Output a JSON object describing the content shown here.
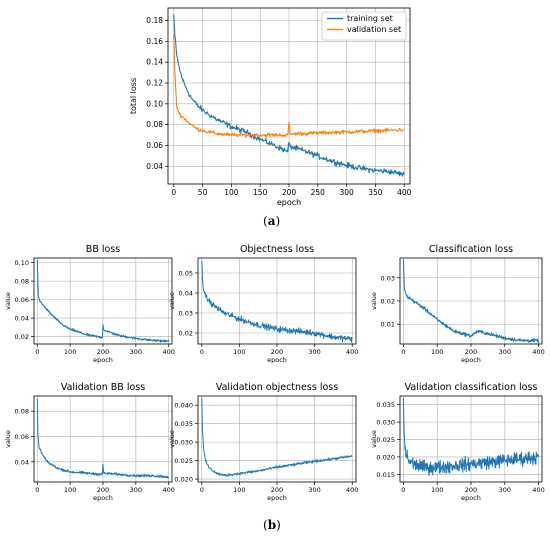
{
  "captions": {
    "a": "(a)",
    "b": "(b)"
  },
  "chart_data": [
    {
      "id": "total",
      "type": "line",
      "title": "",
      "xlabel": "epoch",
      "ylabel": "total loss",
      "xlim": [
        -10,
        410
      ],
      "ylim": [
        0.023,
        0.192
      ],
      "xticks": [
        0,
        50,
        100,
        150,
        200,
        250,
        300,
        350,
        400
      ],
      "yticks": [
        0.04,
        0.06,
        0.08,
        0.1,
        0.12,
        0.14,
        0.16,
        0.18
      ],
      "ytick_labels": [
        "0.04",
        "0.06",
        "0.08",
        "0.10",
        "0.12",
        "0.14",
        "0.16",
        "0.18"
      ],
      "grid": true,
      "legend_position": "top-right",
      "series": [
        {
          "name": "training set",
          "color": "#1f77b4",
          "points": [
            [
              0,
              0.186
            ],
            [
              2,
              0.165
            ],
            [
              5,
              0.147
            ],
            [
              10,
              0.133
            ],
            [
              15,
              0.124
            ],
            [
              20,
              0.117
            ],
            [
              30,
              0.106
            ],
            [
              40,
              0.099
            ],
            [
              50,
              0.094
            ],
            [
              60,
              0.09
            ],
            [
              75,
              0.085
            ],
            [
              100,
              0.078
            ],
            [
              125,
              0.073
            ],
            [
              150,
              0.066
            ],
            [
              175,
              0.06
            ],
            [
              198,
              0.054
            ],
            [
              200,
              0.063
            ],
            [
              202,
              0.059
            ],
            [
              225,
              0.055
            ],
            [
              250,
              0.05
            ],
            [
              275,
              0.045
            ],
            [
              300,
              0.041
            ],
            [
              325,
              0.038
            ],
            [
              350,
              0.036
            ],
            [
              375,
              0.035
            ],
            [
              400,
              0.032
            ]
          ],
          "noise": 0.0022,
          "start_x": 0,
          "end_x": 400
        },
        {
          "name": "validation set",
          "color": "#ff7f0e",
          "points": [
            [
              0,
              0.167
            ],
            [
              2,
              0.13
            ],
            [
              5,
              0.098
            ],
            [
              10,
              0.09
            ],
            [
              20,
              0.085
            ],
            [
              30,
              0.08
            ],
            [
              40,
              0.076
            ],
            [
              60,
              0.073
            ],
            [
              80,
              0.071
            ],
            [
              100,
              0.07
            ],
            [
              150,
              0.07
            ],
            [
              198,
              0.07
            ],
            [
              200,
              0.082
            ],
            [
              202,
              0.071
            ],
            [
              250,
              0.072
            ],
            [
              300,
              0.073
            ],
            [
              350,
              0.074
            ],
            [
              400,
              0.075
            ]
          ],
          "noise": 0.0015,
          "start_x": 0,
          "end_x": 400
        }
      ]
    },
    {
      "id": "bb",
      "type": "line",
      "title": "BB loss",
      "xlabel": "epoch",
      "ylabel": "value",
      "xlim": [
        -10,
        410
      ],
      "ylim": [
        0.012,
        0.105
      ],
      "xticks": [
        0,
        100,
        200,
        300,
        400
      ],
      "yticks": [
        0.02,
        0.04,
        0.06,
        0.08,
        0.1
      ],
      "ytick_labels": [
        "0.02",
        "0.04",
        "0.06",
        "0.08",
        "0.10"
      ],
      "grid": true,
      "series": [
        {
          "name": "",
          "color": "#1f77b4",
          "points": [
            [
              0,
              0.103
            ],
            [
              3,
              0.065
            ],
            [
              8,
              0.058
            ],
            [
              20,
              0.053
            ],
            [
              40,
              0.045
            ],
            [
              60,
              0.038
            ],
            [
              80,
              0.032
            ],
            [
              100,
              0.028
            ],
            [
              150,
              0.022
            ],
            [
              198,
              0.019
            ],
            [
              200,
              0.033
            ],
            [
              203,
              0.027
            ],
            [
              250,
              0.021
            ],
            [
              300,
              0.018
            ],
            [
              350,
              0.016
            ],
            [
              400,
              0.015
            ]
          ],
          "noise": 0.001,
          "start_x": 0,
          "end_x": 400
        }
      ]
    },
    {
      "id": "obj",
      "type": "line",
      "title": "Objectness loss",
      "xlabel": "epoch",
      "ylabel": "value",
      "xlim": [
        -10,
        410
      ],
      "ylim": [
        0.0145,
        0.0575
      ],
      "xticks": [
        0,
        100,
        200,
        300,
        400
      ],
      "yticks": [
        0.02,
        0.03,
        0.04,
        0.05
      ],
      "ytick_labels": [
        "0.02",
        "0.03",
        "0.04",
        "0.05"
      ],
      "grid": true,
      "series": [
        {
          "name": "",
          "color": "#1f77b4",
          "points": [
            [
              0,
              0.056
            ],
            [
              3,
              0.044
            ],
            [
              10,
              0.038
            ],
            [
              30,
              0.034
            ],
            [
              60,
              0.03
            ],
            [
              100,
              0.027
            ],
            [
              150,
              0.024
            ],
            [
              200,
              0.022
            ],
            [
              250,
              0.021
            ],
            [
              300,
              0.02
            ],
            [
              350,
              0.018
            ],
            [
              400,
              0.017
            ]
          ],
          "noise": 0.0012,
          "start_x": 0,
          "end_x": 400
        }
      ]
    },
    {
      "id": "cls",
      "type": "line",
      "title": "Classification loss",
      "xlabel": "epoch",
      "ylabel": "value",
      "xlim": [
        -10,
        410
      ],
      "ylim": [
        0.0015,
        0.0385
      ],
      "xticks": [
        0,
        100,
        200,
        300,
        400
      ],
      "yticks": [
        0.01,
        0.02,
        0.03
      ],
      "ytick_labels": [
        "0.01",
        "0.02",
        "0.03"
      ],
      "grid": true,
      "series": [
        {
          "name": "",
          "color": "#1f77b4",
          "points": [
            [
              0,
              0.038
            ],
            [
              3,
              0.025
            ],
            [
              10,
              0.022
            ],
            [
              30,
              0.02
            ],
            [
              60,
              0.017
            ],
            [
              100,
              0.012
            ],
            [
              150,
              0.007
            ],
            [
              200,
              0.005
            ],
            [
              220,
              0.007
            ],
            [
              250,
              0.006
            ],
            [
              300,
              0.004
            ],
            [
              350,
              0.003
            ],
            [
              400,
              0.003
            ]
          ],
          "noise": 0.0006,
          "start_x": 0,
          "end_x": 400
        }
      ]
    },
    {
      "id": "vbb",
      "type": "line",
      "title": "Validation BB loss",
      "xlabel": "epoch",
      "ylabel": "value",
      "xlim": [
        -10,
        410
      ],
      "ylim": [
        0.024,
        0.092
      ],
      "xticks": [
        0,
        100,
        200,
        300,
        400
      ],
      "yticks": [
        0.04,
        0.06,
        0.08
      ],
      "ytick_labels": [
        "0.04",
        "0.06",
        "0.08"
      ],
      "grid": true,
      "series": [
        {
          "name": "",
          "color": "#1f77b4",
          "points": [
            [
              0,
              0.09
            ],
            [
              2,
              0.06
            ],
            [
              5,
              0.052
            ],
            [
              15,
              0.046
            ],
            [
              30,
              0.04
            ],
            [
              60,
              0.035
            ],
            [
              100,
              0.032
            ],
            [
              150,
              0.031
            ],
            [
              198,
              0.03
            ],
            [
              200,
              0.038
            ],
            [
              202,
              0.031
            ],
            [
              250,
              0.03
            ],
            [
              300,
              0.029
            ],
            [
              350,
              0.029
            ],
            [
              400,
              0.028
            ]
          ],
          "noise": 0.0008,
          "start_x": 0,
          "end_x": 400
        }
      ]
    },
    {
      "id": "vobj",
      "type": "line",
      "title": "Validation objectness loss",
      "xlabel": "epoch",
      "ylabel": "value",
      "xlim": [
        -10,
        410
      ],
      "ylim": [
        0.0192,
        0.0425
      ],
      "xticks": [
        0,
        100,
        200,
        300,
        400
      ],
      "yticks": [
        0.02,
        0.025,
        0.03,
        0.035,
        0.04
      ],
      "ytick_labels": [
        "0.020",
        "0.025",
        "0.030",
        "0.035",
        "0.040"
      ],
      "grid": true,
      "series": [
        {
          "name": "",
          "color": "#1f77b4",
          "points": [
            [
              0,
              0.042
            ],
            [
              2,
              0.033
            ],
            [
              5,
              0.028
            ],
            [
              10,
              0.025
            ],
            [
              20,
              0.023
            ],
            [
              40,
              0.0215
            ],
            [
              60,
              0.021
            ],
            [
              100,
              0.0215
            ],
            [
              150,
              0.0222
            ],
            [
              200,
              0.0232
            ],
            [
              250,
              0.024
            ],
            [
              300,
              0.0248
            ],
            [
              350,
              0.0255
            ],
            [
              400,
              0.0262
            ]
          ],
          "noise": 0.0003,
          "start_x": 0,
          "end_x": 400
        }
      ]
    },
    {
      "id": "vcls",
      "type": "line",
      "title": "Validation classification loss",
      "xlabel": "epoch",
      "ylabel": "value",
      "xlim": [
        -10,
        410
      ],
      "ylim": [
        0.0128,
        0.0375
      ],
      "xticks": [
        0,
        100,
        200,
        300,
        400
      ],
      "yticks": [
        0.015,
        0.02,
        0.025,
        0.03,
        0.035
      ],
      "ytick_labels": [
        "0.015",
        "0.020",
        "0.025",
        "0.030",
        "0.035"
      ],
      "grid": true,
      "series": [
        {
          "name": "",
          "color": "#1f77b4",
          "points": [
            [
              0,
              0.037
            ],
            [
              2,
              0.028
            ],
            [
              5,
              0.022
            ],
            [
              15,
              0.019
            ],
            [
              30,
              0.018
            ],
            [
              60,
              0.017
            ],
            [
              100,
              0.017
            ],
            [
              150,
              0.0175
            ],
            [
              200,
              0.018
            ],
            [
              250,
              0.0185
            ],
            [
              300,
              0.019
            ],
            [
              350,
              0.0195
            ],
            [
              400,
              0.02
            ]
          ],
          "noise": 0.0016,
          "start_x": 0,
          "end_x": 400
        }
      ]
    }
  ]
}
